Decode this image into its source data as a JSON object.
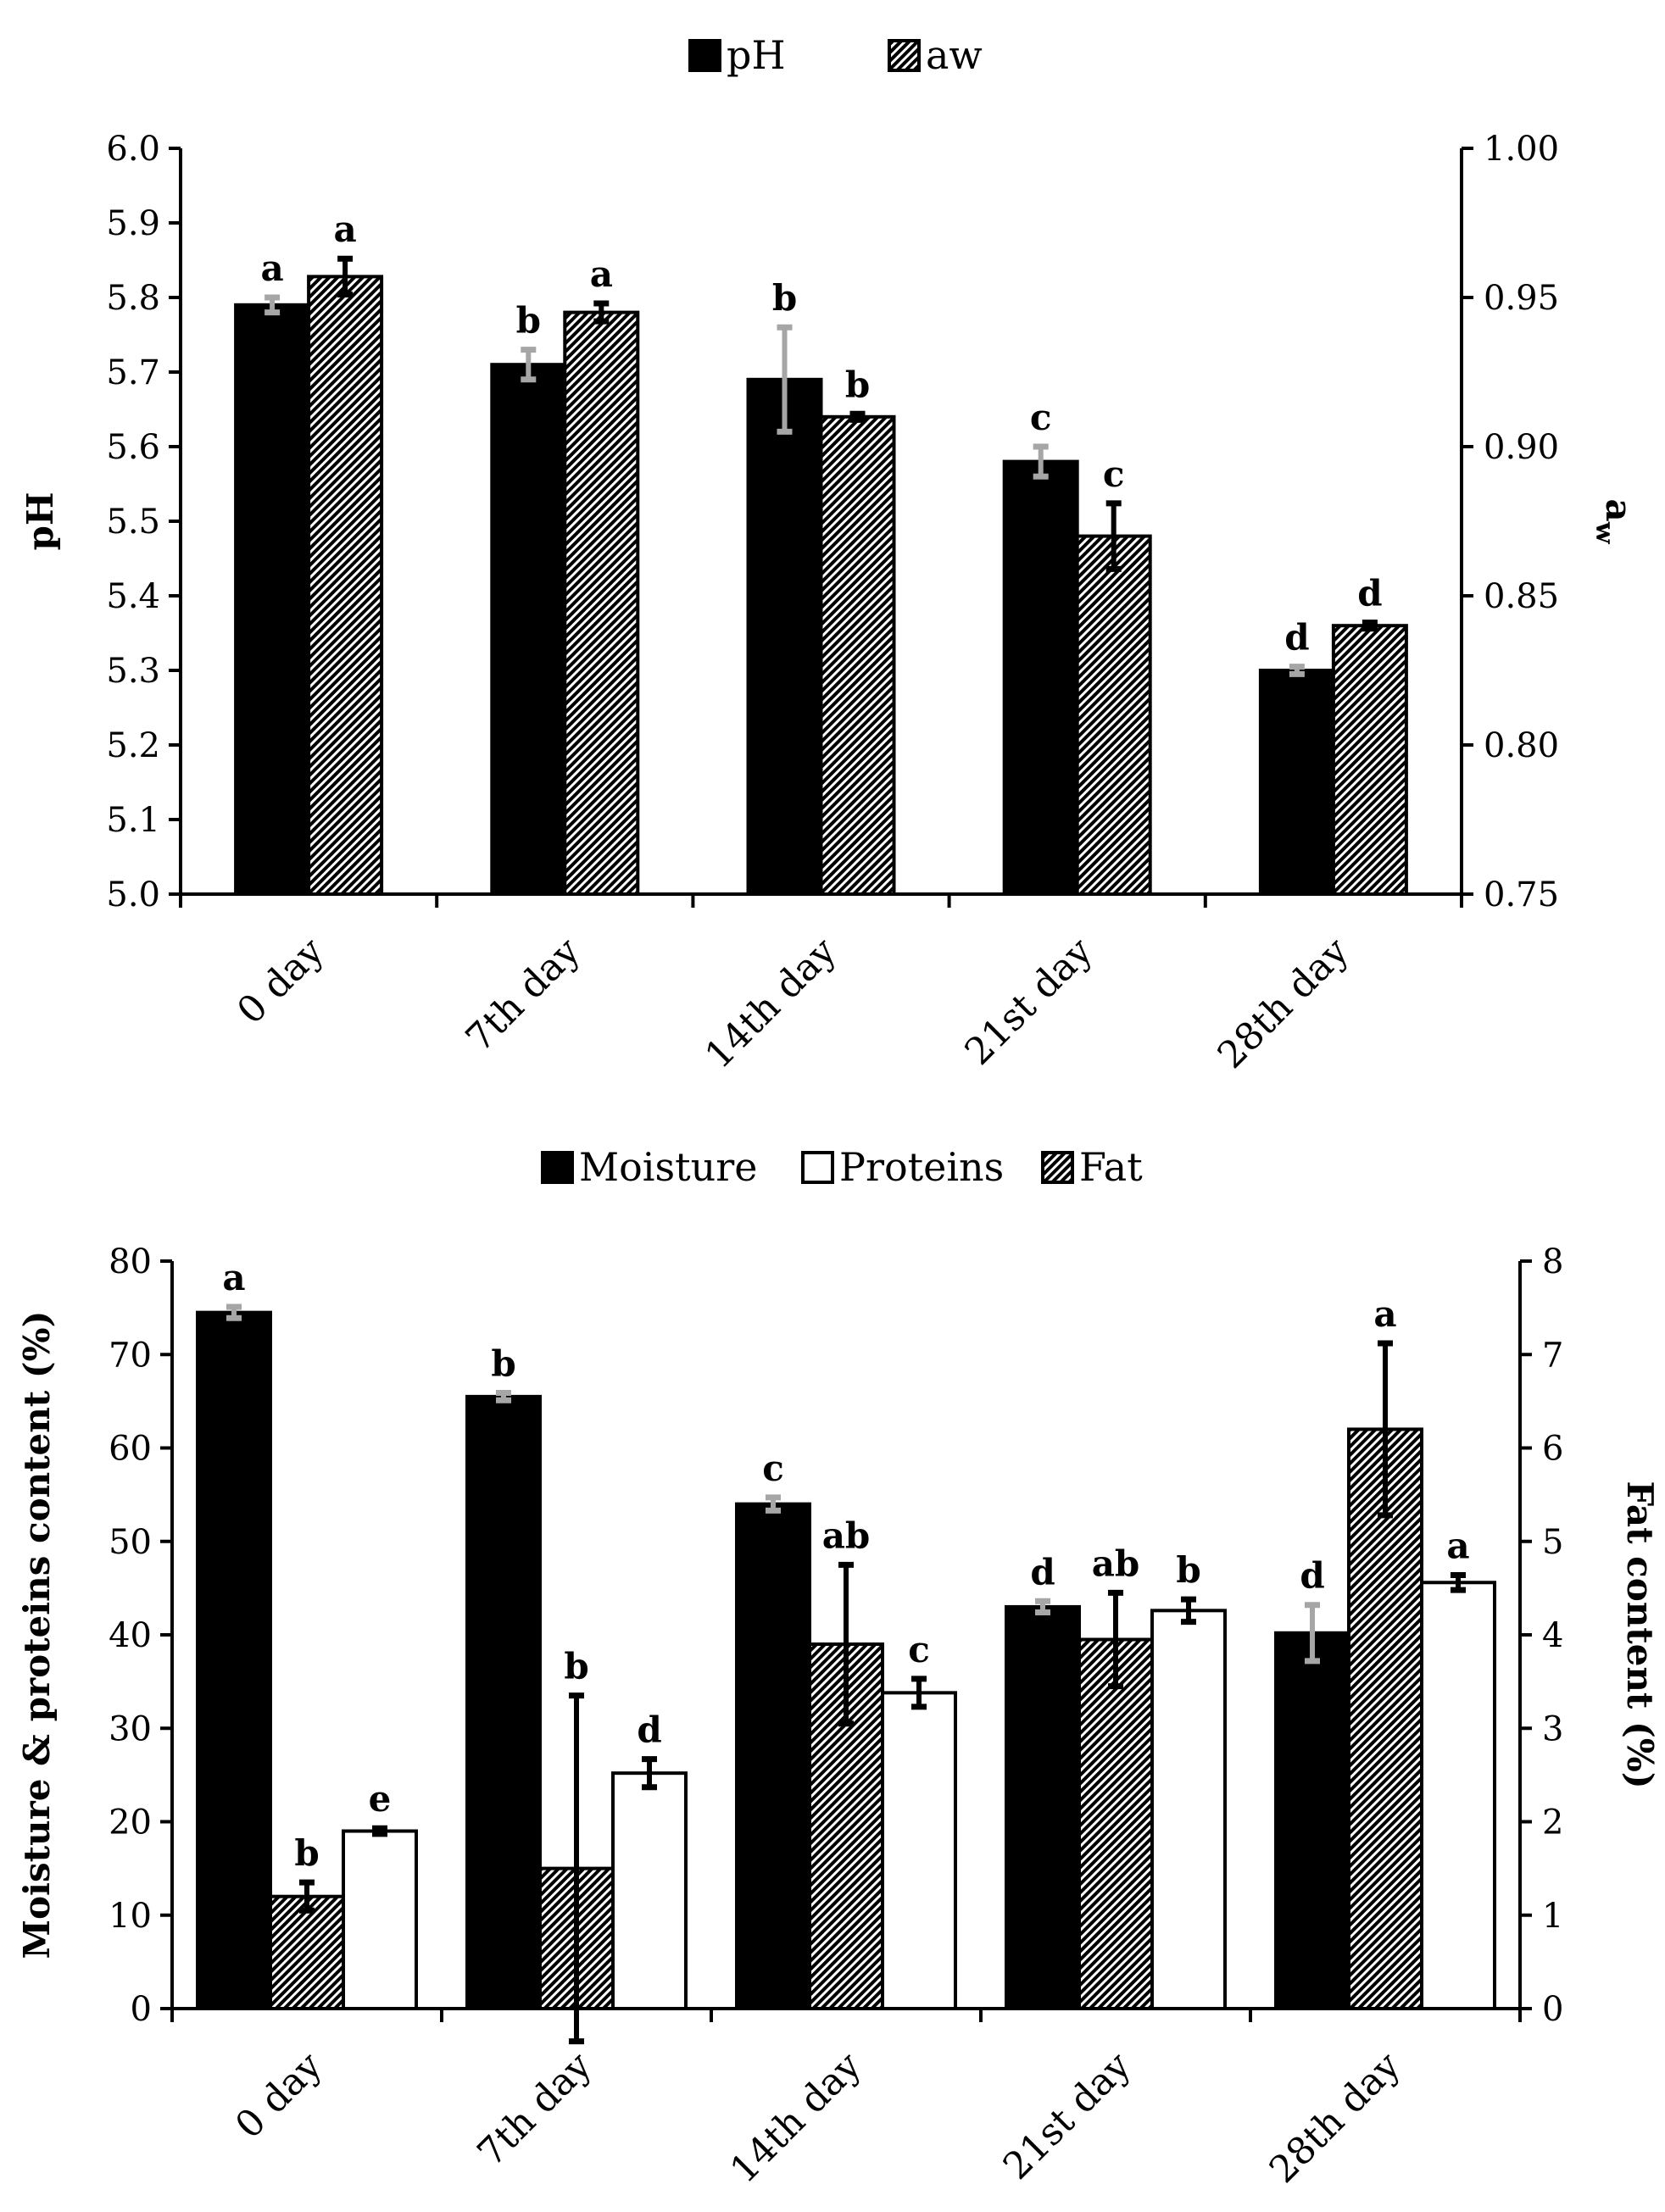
{
  "chart_data": [
    {
      "type": "bar",
      "categories": [
        "0 day",
        "7th day",
        "14th day",
        "21st day",
        "28th day"
      ],
      "legend": [
        "pH",
        "aw"
      ],
      "ylabel": "pH",
      "y2label_main": "a",
      "y2label_sub": "w",
      "ylim": [
        5.0,
        6.0
      ],
      "y2lim": [
        0.75,
        1.0
      ],
      "yticks": [
        "5.0",
        "5.1",
        "5.2",
        "5.3",
        "5.4",
        "5.5",
        "5.6",
        "5.7",
        "5.8",
        "5.9",
        "6.0"
      ],
      "y2ticks": [
        "0.75",
        "0.80",
        "0.85",
        "0.90",
        "0.95",
        "1.00"
      ],
      "series": [
        {
          "name": "pH",
          "axis": "left",
          "fill": "black",
          "err_color": "#a6a6a6",
          "values": [
            5.79,
            5.71,
            5.69,
            5.58,
            5.3
          ],
          "errors": [
            0.01,
            0.02,
            0.07,
            0.02,
            0.005
          ],
          "letters": [
            "a",
            "b",
            "b",
            "c",
            "d"
          ]
        },
        {
          "name": "aw",
          "axis": "right",
          "fill": "hatch",
          "err_color": "#000000",
          "values": [
            0.957,
            0.945,
            0.91,
            0.87,
            0.84
          ],
          "errors": [
            0.006,
            0.003,
            0.001,
            0.011,
            0.001
          ],
          "letters": [
            "a",
            "a",
            "b",
            "c",
            "d"
          ]
        }
      ]
    },
    {
      "type": "bar",
      "categories": [
        "0 day",
        "7th day",
        "14th day",
        "21st day",
        "28th day"
      ],
      "legend": [
        "Moisture",
        "Proteins",
        "Fat"
      ],
      "ylabel": "Moisture & proteins content (%)",
      "y2label": "Fat content (%)",
      "ylim": [
        0,
        80
      ],
      "y2lim": [
        0,
        8
      ],
      "yticks": [
        "0",
        "10",
        "20",
        "30",
        "40",
        "50",
        "60",
        "70",
        "80"
      ],
      "y2ticks": [
        "0",
        "1",
        "2",
        "3",
        "4",
        "5",
        "6",
        "7",
        "8"
      ],
      "series": [
        {
          "name": "Moisture",
          "axis": "left",
          "fill": "black",
          "err_color": "#a6a6a6",
          "values": [
            74.5,
            65.5,
            54.0,
            43.0,
            40.2
          ],
          "errors": [
            0.6,
            0.4,
            0.7,
            0.6,
            3.0
          ],
          "letters": [
            "a",
            "b",
            "c",
            "d",
            "d"
          ]
        },
        {
          "name": "Fat",
          "axis": "right",
          "fill": "hatch",
          "err_color": "#000000",
          "values": [
            1.2,
            1.5,
            3.9,
            3.95,
            6.2
          ],
          "errors": [
            0.15,
            1.85,
            0.85,
            0.5,
            0.92
          ],
          "letters": [
            "b",
            "b",
            "ab",
            "ab",
            "a"
          ]
        },
        {
          "name": "Proteins",
          "axis": "left",
          "fill": "white",
          "err_color": "#000000",
          "values": [
            19.0,
            25.2,
            33.8,
            42.6,
            45.6
          ],
          "errors": [
            0.3,
            1.5,
            1.5,
            1.2,
            0.8
          ],
          "letters": [
            "e",
            "d",
            "c",
            "b",
            "a"
          ]
        }
      ]
    }
  ]
}
